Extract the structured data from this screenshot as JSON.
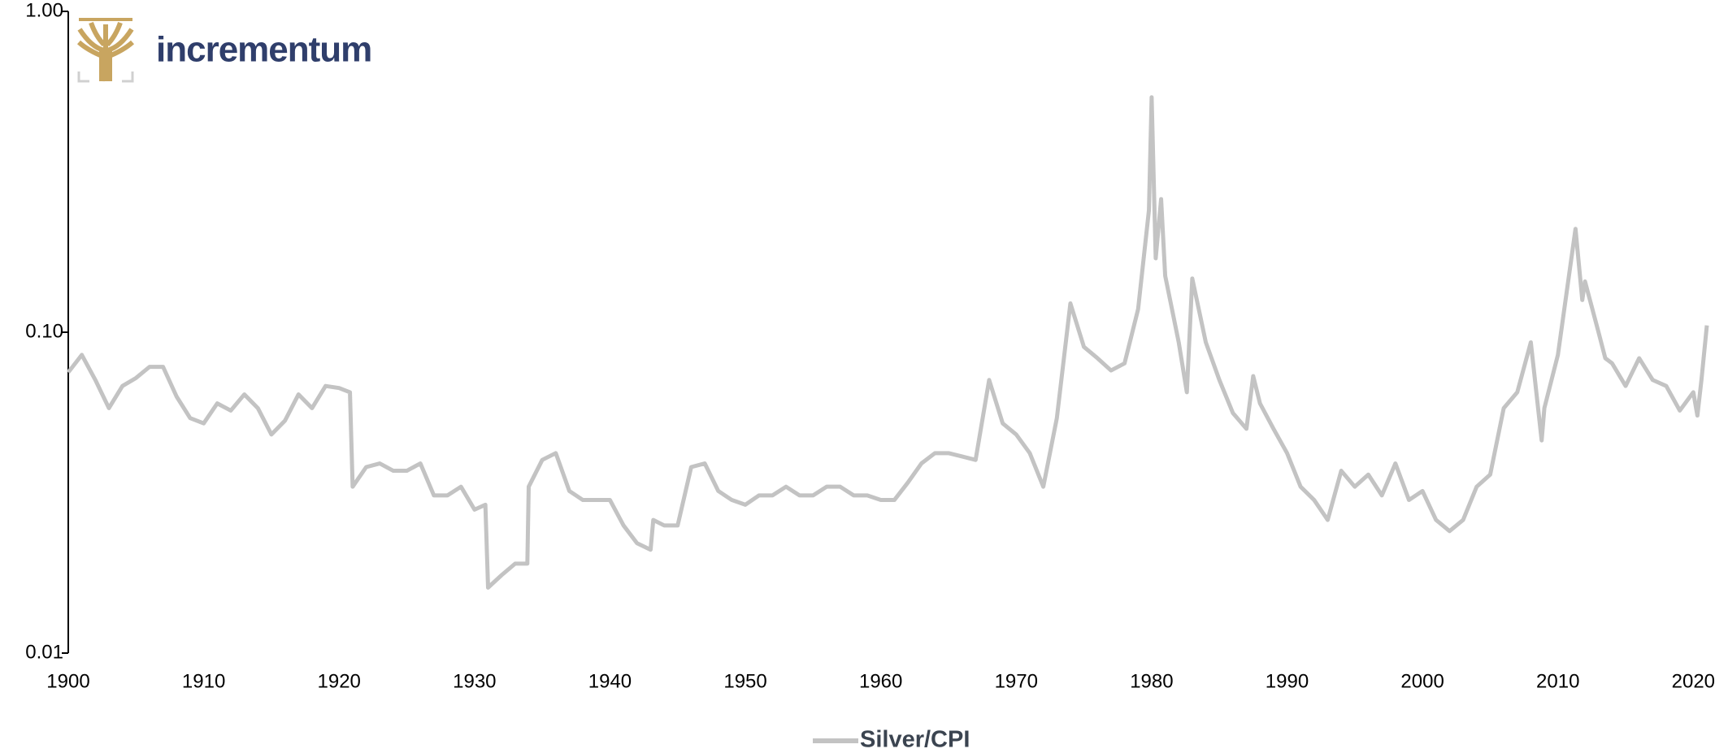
{
  "logo_text": "incrementum",
  "chart_data": {
    "type": "line",
    "log_scale_y": true,
    "x": [
      1900,
      1901,
      1902,
      1903,
      1904,
      1905,
      1906,
      1907,
      1908,
      1909,
      1910,
      1911,
      1912,
      1913,
      1914,
      1915,
      1916,
      1917,
      1918,
      1919,
      1920,
      1920.8,
      1921,
      1922,
      1923,
      1924,
      1925,
      1926,
      1927,
      1928,
      1929,
      1930,
      1930.8,
      1931,
      1932,
      1933,
      1933.9,
      1934,
      1935,
      1936,
      1937,
      1938,
      1939,
      1940,
      1941,
      1942,
      1943,
      1943.2,
      1944,
      1945,
      1946,
      1947,
      1948,
      1949,
      1950,
      1951,
      1952,
      1953,
      1954,
      1955,
      1956,
      1957,
      1958,
      1959,
      1960,
      1961,
      1962,
      1963,
      1964,
      1965,
      1966,
      1967,
      1968,
      1969,
      1970,
      1971,
      1972,
      1973,
      1974,
      1975,
      1976,
      1977,
      1978,
      1979,
      1979.8,
      1980,
      1980.3,
      1980.7,
      1981,
      1982,
      1982.6,
      1983,
      1984,
      1985,
      1986,
      1987,
      1987.5,
      1988,
      1989,
      1990,
      1991,
      1992,
      1993,
      1994,
      1995,
      1996,
      1997,
      1998,
      1999,
      2000,
      2001,
      2002,
      2003,
      2004,
      2005,
      2006,
      2007,
      2008,
      2008.8,
      2009,
      2010,
      2011.3,
      2011.8,
      2012,
      2013,
      2013.5,
      2014,
      2015,
      2016,
      2017,
      2018,
      2019,
      2020,
      2020.3,
      2020.6,
      2021
    ],
    "series": [
      {
        "name": "Silver/CPI",
        "color": "#c3c3c3",
        "values": [
          0.075,
          0.085,
          0.071,
          0.058,
          0.068,
          0.072,
          0.078,
          0.078,
          0.063,
          0.054,
          0.052,
          0.06,
          0.057,
          0.064,
          0.058,
          0.048,
          0.053,
          0.064,
          0.058,
          0.068,
          0.067,
          0.065,
          0.033,
          0.038,
          0.039,
          0.037,
          0.037,
          0.039,
          0.031,
          0.031,
          0.033,
          0.028,
          0.029,
          0.016,
          0.0175,
          0.019,
          0.019,
          0.033,
          0.04,
          0.042,
          0.032,
          0.03,
          0.03,
          0.03,
          0.025,
          0.022,
          0.021,
          0.026,
          0.025,
          0.025,
          0.038,
          0.039,
          0.032,
          0.03,
          0.029,
          0.031,
          0.031,
          0.033,
          0.031,
          0.031,
          0.033,
          0.033,
          0.031,
          0.031,
          0.03,
          0.03,
          0.034,
          0.039,
          0.042,
          0.042,
          0.041,
          0.04,
          0.071,
          0.052,
          0.048,
          0.042,
          0.033,
          0.054,
          0.123,
          0.09,
          0.083,
          0.076,
          0.08,
          0.118,
          0.24,
          0.54,
          0.17,
          0.26,
          0.15,
          0.093,
          0.065,
          0.147,
          0.093,
          0.071,
          0.056,
          0.05,
          0.073,
          0.06,
          0.05,
          0.042,
          0.033,
          0.03,
          0.026,
          0.037,
          0.033,
          0.036,
          0.031,
          0.039,
          0.03,
          0.032,
          0.026,
          0.024,
          0.026,
          0.033,
          0.036,
          0.058,
          0.065,
          0.093,
          0.046,
          0.058,
          0.085,
          0.21,
          0.126,
          0.144,
          0.1,
          0.083,
          0.08,
          0.068,
          0.083,
          0.071,
          0.068,
          0.057,
          0.065,
          0.055,
          0.071,
          0.105
        ]
      }
    ],
    "xlim": [
      1900,
      2021
    ],
    "xticks": [
      1900,
      1910,
      1920,
      1930,
      1940,
      1950,
      1960,
      1970,
      1980,
      1990,
      2000,
      2010,
      2020
    ],
    "ylim": [
      0.01,
      1
    ],
    "yticks": [
      {
        "value": 0.01,
        "label": "0.01"
      },
      {
        "value": 0.1,
        "label": "0.10"
      },
      {
        "value": 1,
        "label": "1.00"
      }
    ],
    "legend": "bottom"
  }
}
